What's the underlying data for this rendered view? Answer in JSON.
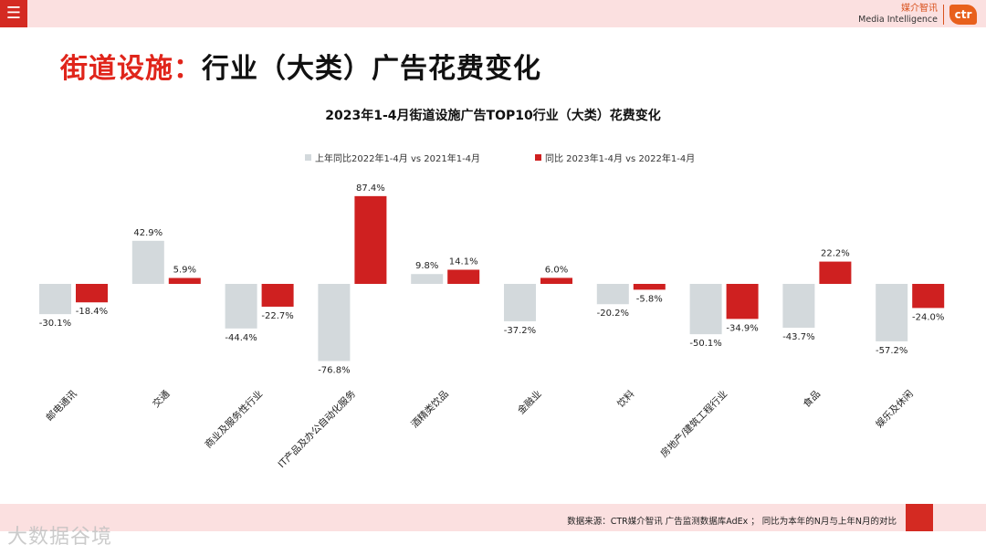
{
  "header": {
    "menu_icon": "hamburger-icon",
    "logo_cn": "媒介智讯",
    "logo_en": "Media Intelligence",
    "logo_mark": "ctr"
  },
  "page_title": {
    "accent": "街道设施：",
    "rest": "行业（大类）广告花费变化"
  },
  "footer": {
    "source": "数据来源：CTR媒介智讯 广告监测数据库AdEx ； 同比为本年的N月与上年N月的对比",
    "watermark": "大数据谷境"
  },
  "colors": {
    "prev": "#d3d9dc",
    "curr": "#cf2020",
    "accent": "#e0251b"
  },
  "chart_data": {
    "type": "bar",
    "title": "2023年1-4月街道设施广告TOP10行业（大类）花费变化",
    "legend_position": "top",
    "categories": [
      "邮电通讯",
      "交通",
      "商业及服务性行业",
      "IT产品及办公自动化服务",
      "酒精类饮品",
      "金融业",
      "饮料",
      "房地产/建筑工程行业",
      "食品",
      "娱乐及休闲"
    ],
    "series": [
      {
        "name": "上年同比2022年1-4月 vs 2021年1-4月",
        "values": [
          -30.1,
          42.9,
          -44.4,
          -76.8,
          9.8,
          -37.2,
          -20.2,
          -50.1,
          -43.7,
          -57.2
        ],
        "labels": [
          "-30.1%",
          "42.9%",
          "-44.4%",
          "-76.8%",
          "9.8%",
          "-37.2%",
          "-20.2%",
          "-50.1%",
          "-43.7%",
          "-57.2%"
        ]
      },
      {
        "name": "同比 2023年1-4月 vs 2022年1-4月",
        "values": [
          -18.4,
          5.9,
          -22.7,
          87.4,
          14.1,
          6.0,
          -5.8,
          -34.9,
          22.2,
          -24.0
        ],
        "labels": [
          "-18.4%",
          "5.9%",
          "-22.7%",
          "87.4%",
          "14.1%",
          "6.0%",
          "-5.8%",
          "-34.9%",
          "22.2%",
          "-24.0%"
        ]
      }
    ]
  }
}
